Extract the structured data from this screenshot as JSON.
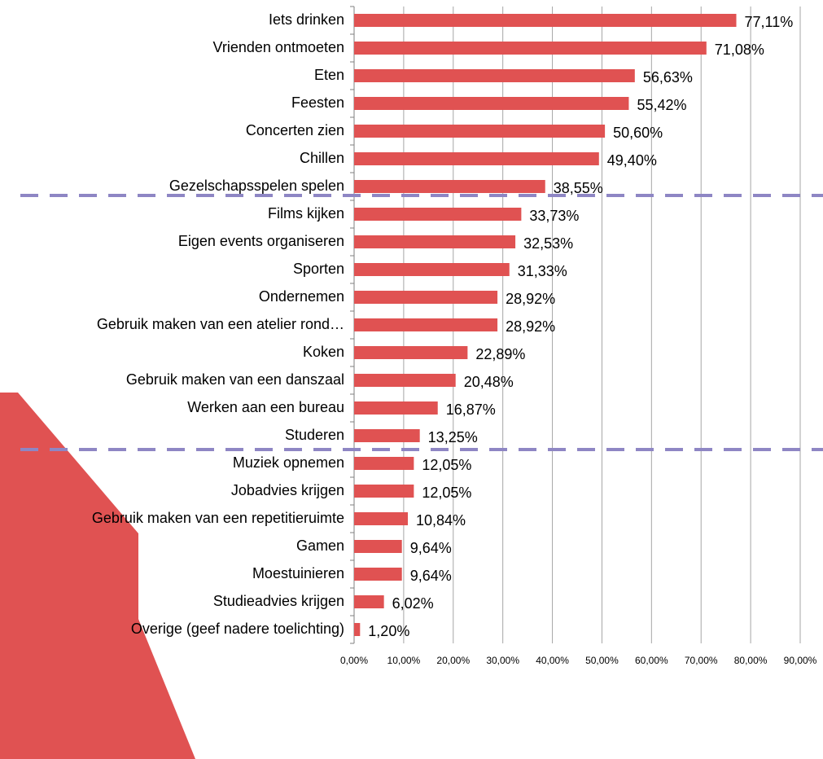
{
  "chart_data": {
    "type": "barh",
    "categories": [
      "Iets drinken",
      "Vrienden ontmoeten",
      "Eten",
      "Feesten",
      "Concerten zien",
      "Chillen",
      "Gezelschapsspelen spelen",
      "Films kijken",
      "Eigen events organiseren",
      "Sporten",
      "Ondernemen",
      "Gebruik maken van een atelier rond…",
      "Koken",
      "Gebruik maken van een danszaal",
      "Werken aan een bureau",
      "Studeren",
      "Muziek opnemen",
      "Jobadvies krijgen",
      "Gebruik maken van een repetitieruimte",
      "Gamen",
      "Moestuinieren",
      "Studieadvies krijgen",
      "Overige (geef nadere toelichting)"
    ],
    "values": [
      77.11,
      71.08,
      56.63,
      55.42,
      50.6,
      49.4,
      38.55,
      33.73,
      32.53,
      31.33,
      28.92,
      28.92,
      22.89,
      20.48,
      16.87,
      13.25,
      12.05,
      12.05,
      10.84,
      9.64,
      9.64,
      6.02,
      1.2
    ],
    "value_labels": [
      "77,11%",
      "71,08%",
      "56,63%",
      "55,42%",
      "50,60%",
      "49,40%",
      "38,55%",
      "33,73%",
      "32,53%",
      "31,33%",
      "28,92%",
      "28,92%",
      "22,89%",
      "20,48%",
      "16,87%",
      "13,25%",
      "12,05%",
      "12,05%",
      "10,84%",
      "9,64%",
      "9,64%",
      "6,02%",
      "1,20%"
    ],
    "color": "#e05252",
    "xlim": [
      0,
      90
    ],
    "xticks": [
      {
        "value": 0,
        "label": "0,00%"
      },
      {
        "value": 10,
        "label": "10,00%"
      },
      {
        "value": 20,
        "label": "20,00%"
      },
      {
        "value": 30,
        "label": "30,00%"
      },
      {
        "value": 40,
        "label": "40,00%"
      },
      {
        "value": 50,
        "label": "50,00%"
      },
      {
        "value": 60,
        "label": "60,00%"
      },
      {
        "value": 70,
        "label": "70,00%"
      },
      {
        "value": 80,
        "label": "80,00%"
      },
      {
        "value": 90,
        "label": "90,00%"
      }
    ],
    "grid": true
  }
}
